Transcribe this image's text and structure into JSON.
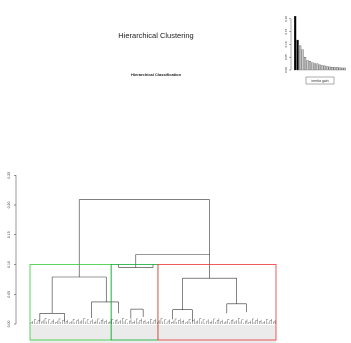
{
  "chart_data": [
    {
      "type": "dendrogram",
      "title": "Hierarchical Classification",
      "ylim": [
        0,
        0.4
      ],
      "y_ticks": [
        {
          "value": 0.0,
          "label": "0.00"
        },
        {
          "value": 0.05,
          "label": "0.05"
        },
        {
          "value": 0.1,
          "label": "0.10"
        },
        {
          "value": 0.15,
          "label": "0.15"
        },
        {
          "value": 0.2,
          "label": "0.20"
        },
        {
          "value": 0.25,
          "label": "0.25"
        }
      ],
      "cut_height": 0.1,
      "clusters": [
        {
          "cluster": 1,
          "color": "#33cc33",
          "leaf_range": [
            0.0,
            0.33
          ]
        },
        {
          "cluster": 2,
          "color": "#11aa33",
          "leaf_range": [
            0.33,
            0.52
          ]
        },
        {
          "cluster": 3,
          "color": "#ee3333",
          "leaf_range": [
            0.52,
            1.0
          ]
        }
      ],
      "merges": [
        {
          "x_left": 0.2,
          "x_right": 0.73,
          "y_left": 0.079,
          "y_right": 0.117,
          "height": 0.209
        },
        {
          "x_left": 0.43,
          "x_right": 0.73,
          "y_left": 0.095,
          "y_right": 0.077,
          "height": 0.117
        },
        {
          "x_left": 0.36,
          "x_right": 0.5,
          "y_left": 0.1,
          "y_right": 0.1,
          "height": 0.095
        },
        {
          "x_left": 0.09,
          "x_right": 0.31,
          "y_left": 0.018,
          "y_right": 0.037,
          "height": 0.079
        },
        {
          "x_left": 0.84,
          "x_right": 0.62,
          "y_left": 0.034,
          "y_right": 0.024,
          "height": 0.077
        },
        {
          "x_left": 0.25,
          "x_right": 0.36,
          "y_left": 0.01,
          "y_right": 0.018,
          "height": 0.037
        },
        {
          "x_left": 0.58,
          "x_right": 0.66,
          "y_left": 0.008,
          "y_right": 0.004,
          "height": 0.024
        },
        {
          "x_left": 0.8,
          "x_right": 0.88,
          "y_left": 0.018,
          "y_right": 0.02,
          "height": 0.034
        },
        {
          "x_left": 0.41,
          "x_right": 0.46,
          "y_left": 0.009,
          "y_right": 0.012,
          "height": 0.025
        },
        {
          "x_left": 0.04,
          "x_right": 0.14,
          "y_left": 0.004,
          "y_right": 0.004,
          "height": 0.018
        }
      ],
      "leaves_shown_as_text": false
    },
    {
      "type": "bar",
      "title": "",
      "ylim": [
        0,
        0.25
      ],
      "y_ticks": [
        {
          "value": 0.0,
          "label": "0.00"
        },
        {
          "value": 0.05,
          "label": "0.05"
        },
        {
          "value": 0.1,
          "label": "0.10"
        },
        {
          "value": 0.15,
          "label": "0.15"
        },
        {
          "value": 0.2,
          "label": "0.20"
        }
      ],
      "values": [
        0.21,
        0.117,
        0.095,
        0.079,
        0.05,
        0.037,
        0.034,
        0.028,
        0.025,
        0.024,
        0.02,
        0.018,
        0.016,
        0.014,
        0.012,
        0.011,
        0.01,
        0.01,
        0.009,
        0.008,
        0.008
      ],
      "highlighted_count": 2,
      "legend": "inertia gain"
    }
  ],
  "header": {
    "title": "Hierarchical Clustering"
  }
}
